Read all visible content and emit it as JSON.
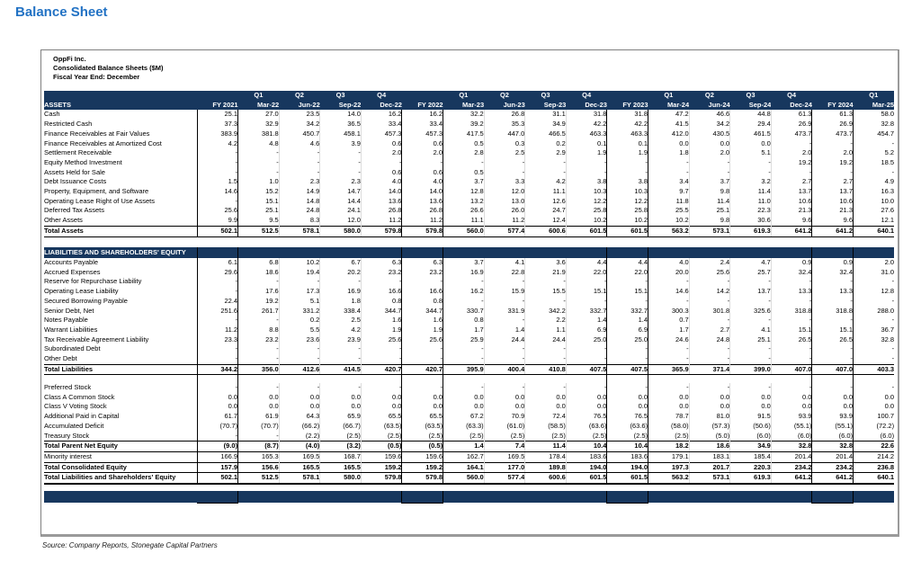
{
  "page_title": "Balance Sheet",
  "source_note": "Source: Company Reports, Stonegate Capital Partners",
  "colors": {
    "navy_bar": "#17375E",
    "title_blue": "#2272C4"
  },
  "box_header": {
    "company": "OppFi Inc.",
    "subtitle": "Consolidated Balance Sheets ($M)",
    "fiscal_note": "Fiscal Year End: December"
  },
  "table": {
    "assets_label": "ASSETS",
    "liabilities_bar_label": "LIABILITIES AND SHAREHOLDERS' EQUITY",
    "columns": [
      {
        "q": "",
        "y": "FY 2021",
        "fy": true
      },
      {
        "q": "Q1",
        "y": "Mar-22",
        "fy": false
      },
      {
        "q": "Q2",
        "y": "Jun-22",
        "fy": false
      },
      {
        "q": "Q3",
        "y": "Sep-22",
        "fy": false
      },
      {
        "q": "Q4",
        "y": "Dec-22",
        "fy": false
      },
      {
        "q": "",
        "y": "FY 2022",
        "fy": true
      },
      {
        "q": "Q1",
        "y": "Mar-23",
        "fy": false
      },
      {
        "q": "Q2",
        "y": "Jun-23",
        "fy": false
      },
      {
        "q": "Q3",
        "y": "Sep-23",
        "fy": false
      },
      {
        "q": "Q4",
        "y": "Dec-23",
        "fy": false
      },
      {
        "q": "",
        "y": "FY 2023",
        "fy": true
      },
      {
        "q": "Q1",
        "y": "Mar-24",
        "fy": false
      },
      {
        "q": "Q2",
        "y": "Jun-24",
        "fy": false
      },
      {
        "q": "Q3",
        "y": "Sep-24",
        "fy": false
      },
      {
        "q": "Q4",
        "y": "Dec-24",
        "fy": false
      },
      {
        "q": "",
        "y": "FY 2024",
        "fy": true
      },
      {
        "q": "Q1",
        "y": "Mar-25",
        "fy": false
      }
    ],
    "assets_rows": [
      {
        "label": "Cash",
        "style": "normal",
        "values": [
          "25.1",
          "27.0",
          "23.5",
          "14.0",
          "16.2",
          "16.2",
          "32.2",
          "26.8",
          "31.1",
          "31.8",
          "31.8",
          "47.2",
          "46.6",
          "44.8",
          "61.3",
          "61.3",
          "58.0"
        ]
      },
      {
        "label": "Restricted Cash",
        "style": "normal",
        "values": [
          "37.3",
          "32.9",
          "34.2",
          "36.5",
          "33.4",
          "33.4",
          "39.2",
          "35.3",
          "34.9",
          "42.2",
          "42.2",
          "41.5",
          "34.2",
          "29.4",
          "26.9",
          "26.9",
          "32.8"
        ]
      },
      {
        "label": "Finance Receivables at Fair Values",
        "style": "normal",
        "values": [
          "383.9",
          "381.8",
          "450.7",
          "458.1",
          "457.3",
          "457.3",
          "417.5",
          "447.0",
          "466.5",
          "463.3",
          "463.3",
          "412.0",
          "430.5",
          "461.5",
          "473.7",
          "473.7",
          "454.7"
        ]
      },
      {
        "label": "Finance Receivables at Amortized Cost",
        "style": "normal",
        "values": [
          "4.2",
          "4.8",
          "4.6",
          "3.9",
          "0.6",
          "0.6",
          "0.5",
          "0.3",
          "0.2",
          "0.1",
          "0.1",
          "0.0",
          "0.0",
          "0.0",
          "-",
          "-",
          "-"
        ]
      },
      {
        "label": "Settlement Receivable",
        "style": "normal",
        "values": [
          "-",
          "-",
          "-",
          "-",
          "2.0",
          "2.0",
          "2.8",
          "2.5",
          "2.9",
          "1.9",
          "1.9",
          "1.8",
          "2.0",
          "5.1",
          "2.0",
          "2.0",
          "5.2"
        ]
      },
      {
        "label": "Equity Method Investment",
        "style": "normal",
        "values": [
          "-",
          "-",
          "-",
          "-",
          "-",
          "-",
          "-",
          "-",
          "-",
          "-",
          "-",
          "-",
          "-",
          "-",
          "19.2",
          "19.2",
          "18.5"
        ]
      },
      {
        "label": "Assets Held for Sale",
        "style": "normal",
        "values": [
          "-",
          "-",
          "-",
          "-",
          "0.6",
          "0.6",
          "0.5",
          "-",
          "-",
          "-",
          "-",
          "-",
          "-",
          "-",
          "-",
          "-",
          "-"
        ]
      },
      {
        "label": "Debt Issuance Costs",
        "style": "normal",
        "values": [
          "1.5",
          "1.0",
          "2.3",
          "2.3",
          "4.0",
          "4.0",
          "3.7",
          "3.3",
          "4.2",
          "3.8",
          "3.8",
          "3.4",
          "3.7",
          "3.2",
          "2.7",
          "2.7",
          "4.9"
        ]
      },
      {
        "label": "Property, Equipment, and Software",
        "style": "normal",
        "values": [
          "14.6",
          "15.2",
          "14.9",
          "14.7",
          "14.0",
          "14.0",
          "12.8",
          "12.0",
          "11.1",
          "10.3",
          "10.3",
          "9.7",
          "9.8",
          "11.4",
          "13.7",
          "13.7",
          "16.3"
        ]
      },
      {
        "label": "Operating Lease Right of Use Assets",
        "style": "normal",
        "values": [
          "-",
          "15.1",
          "14.8",
          "14.4",
          "13.6",
          "13.6",
          "13.2",
          "13.0",
          "12.6",
          "12.2",
          "12.2",
          "11.8",
          "11.4",
          "11.0",
          "10.6",
          "10.6",
          "10.0"
        ]
      },
      {
        "label": "Deferred Tax Assets",
        "style": "normal",
        "values": [
          "25.6",
          "25.1",
          "24.8",
          "24.1",
          "26.8",
          "26.8",
          "26.6",
          "26.0",
          "24.7",
          "25.8",
          "25.8",
          "25.5",
          "25.1",
          "22.3",
          "21.3",
          "21.3",
          "27.6"
        ]
      },
      {
        "label": "Other Assets",
        "style": "normal",
        "values": [
          "9.9",
          "9.5",
          "8.3",
          "12.0",
          "11.2",
          "11.2",
          "11.1",
          "11.2",
          "12.4",
          "10.2",
          "10.2",
          "10.2",
          "9.8",
          "30.6",
          "9.6",
          "9.6",
          "12.1"
        ]
      },
      {
        "label": "Total Assets",
        "style": "total",
        "values": [
          "502.1",
          "512.5",
          "578.1",
          "580.0",
          "579.8",
          "579.8",
          "560.0",
          "577.4",
          "600.6",
          "601.5",
          "601.5",
          "563.2",
          "573.1",
          "619.3",
          "641.2",
          "641.2",
          "640.1"
        ]
      }
    ],
    "liabilities_rows": [
      {
        "label": "Accounts Payable",
        "style": "normal",
        "values": [
          "6.1",
          "6.8",
          "10.2",
          "6.7",
          "6.3",
          "6.3",
          "3.7",
          "4.1",
          "3.6",
          "4.4",
          "4.4",
          "4.0",
          "2.4",
          "4.7",
          "0.9",
          "0.9",
          "2.0"
        ]
      },
      {
        "label": "Accrued Expenses",
        "style": "normal",
        "values": [
          "29.6",
          "18.6",
          "19.4",
          "20.2",
          "23.2",
          "23.2",
          "16.9",
          "22.8",
          "21.9",
          "22.0",
          "22.0",
          "20.0",
          "25.6",
          "25.7",
          "32.4",
          "32.4",
          "31.0"
        ]
      },
      {
        "label": "Reserve for Repurchase Liability",
        "style": "normal",
        "values": [
          "-",
          "-",
          "-",
          "-",
          "-",
          "-",
          "-",
          "-",
          "-",
          "-",
          "-",
          "-",
          "-",
          "-",
          "-",
          "-",
          "-"
        ]
      },
      {
        "label": "Operating Lease Liability",
        "style": "normal",
        "values": [
          "-",
          "17.6",
          "17.3",
          "16.9",
          "16.6",
          "16.6",
          "16.2",
          "15.9",
          "15.5",
          "15.1",
          "15.1",
          "14.6",
          "14.2",
          "13.7",
          "13.3",
          "13.3",
          "12.8"
        ]
      },
      {
        "label": "Secured Borrowing Payable",
        "style": "normal",
        "values": [
          "22.4",
          "19.2",
          "5.1",
          "1.8",
          "0.8",
          "0.8",
          "-",
          "-",
          "-",
          "-",
          "-",
          "-",
          "-",
          "-",
          "-",
          "-",
          "-"
        ]
      },
      {
        "label": "Senior Debt, Net",
        "style": "normal",
        "values": [
          "251.6",
          "261.7",
          "331.2",
          "338.4",
          "344.7",
          "344.7",
          "330.7",
          "331.9",
          "342.2",
          "332.7",
          "332.7",
          "300.3",
          "301.8",
          "325.6",
          "318.8",
          "318.8",
          "288.0"
        ]
      },
      {
        "label": "Notes Payable",
        "style": "normal",
        "values": [
          "-",
          "-",
          "0.2",
          "2.5",
          "1.6",
          "1.6",
          "0.8",
          "-",
          "2.2",
          "1.4",
          "1.4",
          "0.7",
          "-",
          "-",
          "-",
          "-",
          "-"
        ]
      },
      {
        "label": "Warrant Liabilities",
        "style": "normal",
        "values": [
          "11.2",
          "8.8",
          "5.5",
          "4.2",
          "1.9",
          "1.9",
          "1.7",
          "1.4",
          "1.1",
          "6.9",
          "6.9",
          "1.7",
          "2.7",
          "4.1",
          "15.1",
          "15.1",
          "36.7"
        ]
      },
      {
        "label": "Tax Receivable Agreement Liability",
        "style": "normal",
        "values": [
          "23.3",
          "23.2",
          "23.6",
          "23.9",
          "25.6",
          "25.6",
          "25.9",
          "24.4",
          "24.4",
          "25.0",
          "25.0",
          "24.6",
          "24.8",
          "25.1",
          "26.5",
          "26.5",
          "32.8"
        ]
      },
      {
        "label": "Subordinated Debt",
        "style": "normal",
        "values": [
          "-",
          "-",
          "-",
          "-",
          "-",
          "-",
          "-",
          "-",
          "-",
          "-",
          "-",
          "-",
          "-",
          "-",
          "-",
          "-",
          "-"
        ]
      },
      {
        "label": "Other Debt",
        "style": "normal",
        "values": [
          "-",
          "-",
          "-",
          "-",
          "-",
          "-",
          "-",
          "-",
          "-",
          "-",
          "-",
          "-",
          "-",
          "-",
          "-",
          "-",
          "-"
        ]
      },
      {
        "label": "Total Liabilities",
        "style": "total",
        "values": [
          "344.2",
          "356.0",
          "412.6",
          "414.5",
          "420.7",
          "420.7",
          "395.9",
          "400.4",
          "410.8",
          "407.5",
          "407.5",
          "365.9",
          "371.4",
          "399.0",
          "407.0",
          "407.0",
          "403.3"
        ]
      }
    ],
    "equity_rows": [
      {
        "label": "Preferred Stock",
        "style": "normal",
        "values": [
          "-",
          "-",
          "-",
          "-",
          "-",
          "-",
          "-",
          "-",
          "-",
          "-",
          "-",
          "-",
          "-",
          "-",
          "-",
          "-",
          "-"
        ]
      },
      {
        "label": "Class A Common Stock",
        "style": "normal",
        "values": [
          "0.0",
          "0.0",
          "0.0",
          "0.0",
          "0.0",
          "0.0",
          "0.0",
          "0.0",
          "0.0",
          "0.0",
          "0.0",
          "0.0",
          "0.0",
          "0.0",
          "0.0",
          "0.0",
          "0.0"
        ]
      },
      {
        "label": "Class V Voting Stock",
        "style": "normal",
        "values": [
          "0.0",
          "0.0",
          "0.0",
          "0.0",
          "0.0",
          "0.0",
          "0.0",
          "0.0",
          "0.0",
          "0.0",
          "0.0",
          "0.0",
          "0.0",
          "0.0",
          "0.0",
          "0.0",
          "0.0"
        ]
      },
      {
        "label": "Additional Paid in Capital",
        "style": "normal",
        "values": [
          "61.7",
          "61.9",
          "64.3",
          "65.9",
          "65.5",
          "65.5",
          "67.2",
          "70.9",
          "72.4",
          "76.5",
          "76.5",
          "78.7",
          "81.0",
          "91.5",
          "93.9",
          "93.9",
          "100.7"
        ]
      },
      {
        "label": "Accumulated Deficit",
        "style": "normal",
        "values": [
          "(70.7)",
          "(70.7)",
          "(66.2)",
          "(66.7)",
          "(63.5)",
          "(63.5)",
          "(63.3)",
          "(61.0)",
          "(58.5)",
          "(63.6)",
          "(63.6)",
          "(58.0)",
          "(57.3)",
          "(50.6)",
          "(55.1)",
          "(55.1)",
          "(72.2)"
        ]
      },
      {
        "label": "Treasury Stock",
        "style": "normal",
        "values": [
          "-",
          "-",
          "(2.2)",
          "(2.5)",
          "(2.5)",
          "(2.5)",
          "(2.5)",
          "(2.5)",
          "(2.5)",
          "(2.5)",
          "(2.5)",
          "(2.5)",
          "(5.0)",
          "(6.0)",
          "(6.0)",
          "(6.0)",
          "(6.0)"
        ]
      },
      {
        "label": "Total Parent Net Equity",
        "style": "total",
        "values": [
          "(9.0)",
          "(8.7)",
          "(4.0)",
          "(3.2)",
          "(0.5)",
          "(0.5)",
          "1.4",
          "7.4",
          "11.4",
          "10.4",
          "10.4",
          "18.2",
          "18.6",
          "34.9",
          "32.8",
          "32.8",
          "22.6"
        ]
      },
      {
        "label": "Minority interest",
        "style": "normal",
        "values": [
          "166.9",
          "165.3",
          "169.5",
          "168.7",
          "159.6",
          "159.6",
          "162.7",
          "169.5",
          "178.4",
          "183.6",
          "183.6",
          "179.1",
          "183.1",
          "185.4",
          "201.4",
          "201.4",
          "214.2"
        ]
      },
      {
        "label": "Total Consolidated Equity",
        "style": "total",
        "values": [
          "157.9",
          "156.6",
          "165.5",
          "165.5",
          "159.2",
          "159.2",
          "164.1",
          "177.0",
          "189.8",
          "194.0",
          "194.0",
          "197.3",
          "201.7",
          "220.3",
          "234.2",
          "234.2",
          "236.8"
        ]
      },
      {
        "label": "Total Liabilities and Shareholders' Equity",
        "style": "grand",
        "values": [
          "502.1",
          "512.5",
          "578.1",
          "580.0",
          "579.8",
          "579.8",
          "560.0",
          "577.4",
          "600.6",
          "601.5",
          "601.5",
          "563.2",
          "573.1",
          "619.3",
          "641.2",
          "641.2",
          "640.1"
        ]
      }
    ]
  }
}
